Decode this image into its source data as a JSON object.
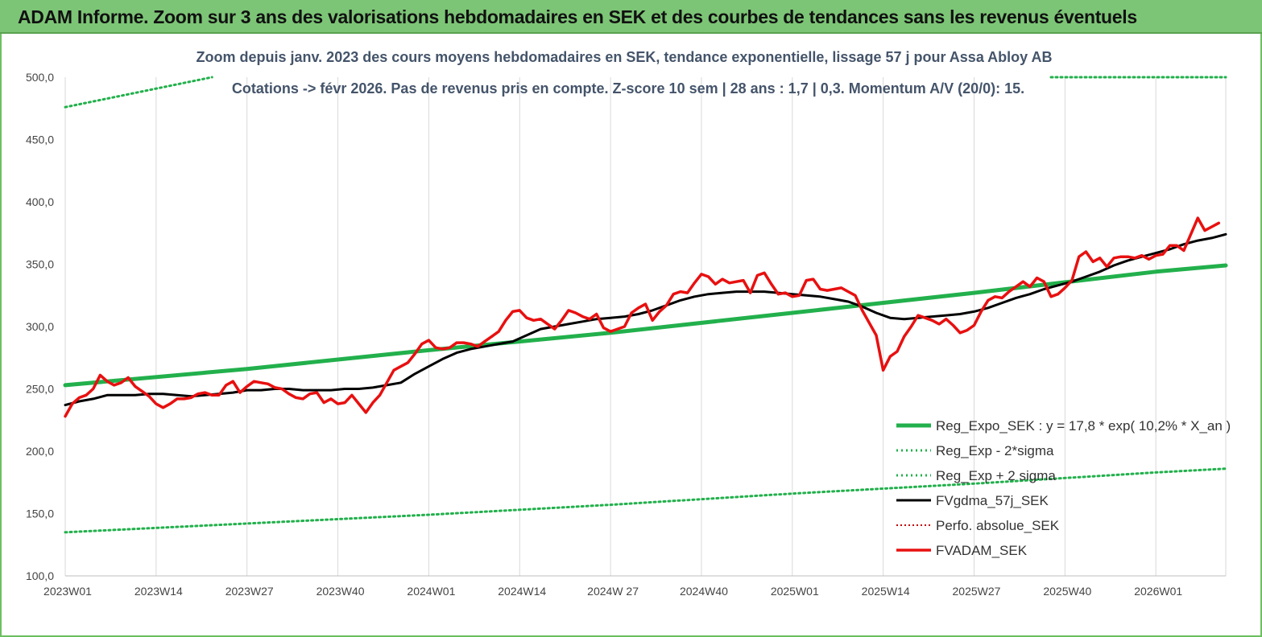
{
  "banner": {
    "title": "ADAM Informe. Zoom sur 3 ans des valorisations hebdomadaires en SEK et des courbes de tendances sans les revenus éventuels"
  },
  "colors": {
    "banner_bg": "#7cc576",
    "reg_expo": "#22b04c",
    "fvgdma": "#000000",
    "perfo_absolue": "#c00000",
    "fvadam": "#e81010",
    "title_text": "#44546a"
  },
  "chart_data": {
    "type": "line",
    "title": "Zoom depuis janv. 2023 des cours moyens hebdomadaires en SEK, tendance exponentielle, lissage 57 j pour Assa Abloy AB",
    "subtitle": "Cotations -> févr 2026.  Pas de revenus pris en compte. Z-score 10 sem  |  28 ans : 1,7  |  0,3. Momentum A/V (20/0): 15.",
    "xlabel": "",
    "ylabel": "",
    "ylim": [
      100,
      500
    ],
    "ytick_labels": [
      "100,0",
      "150,0",
      "200,0",
      "250,0",
      "300,0",
      "350,0",
      "400,0",
      "450,0",
      "500,0"
    ],
    "x_tick_labels": [
      "2023W01",
      "2023W14",
      "2023W27",
      "2023W40",
      "2024W01",
      "2024W14",
      "2024W 27",
      "2024W40",
      "2025W01",
      "2025W14",
      "2025W27",
      "2025W40",
      "2026W01"
    ],
    "x_tick_weeks": [
      0,
      13,
      26,
      39,
      52,
      65,
      78,
      91,
      104,
      117,
      130,
      143,
      156
    ],
    "x_last_week": 166,
    "grid": "vertical",
    "legend_position": "bottom-right",
    "legend": [
      "Reg_Expo_SEK : y = 17,8 * exp( 10,2% *  X_an )",
      "Reg_Exp - 2*sigma",
      "Reg_Exp + 2 sigma",
      "FVgdma_57j_SEK",
      "Perfo. absolue_SEK",
      "FVADAM_SEK"
    ],
    "series": [
      {
        "name": "Reg_Expo_SEK : y = 17,8 * exp( 10,2% *  X_an )",
        "style": "solid-thick",
        "points": [
          [
            0,
            253
          ],
          [
            26,
            266
          ],
          [
            52,
            281
          ],
          [
            78,
            295
          ],
          [
            104,
            311
          ],
          [
            130,
            327
          ],
          [
            156,
            344
          ],
          [
            166,
            349
          ]
        ]
      },
      {
        "name": "Reg_Exp - 2*sigma",
        "style": "dotted",
        "points": [
          [
            0,
            135
          ],
          [
            26,
            142
          ],
          [
            52,
            149
          ],
          [
            78,
            157
          ],
          [
            104,
            166
          ],
          [
            130,
            174
          ],
          [
            156,
            183
          ],
          [
            166,
            186
          ]
        ]
      },
      {
        "name": "Reg_Exp + 2 sigma",
        "style": "dotted",
        "points": [
          [
            0,
            476
          ],
          [
            21,
            500
          ]
        ],
        "points_extra": [
          [
            141,
            500
          ],
          [
            166,
            500
          ]
        ]
      },
      {
        "name": "FVgdma_57j_SEK",
        "style": "solid",
        "points": [
          [
            0,
            237
          ],
          [
            2,
            240
          ],
          [
            4,
            242
          ],
          [
            6,
            245
          ],
          [
            8,
            245
          ],
          [
            10,
            245
          ],
          [
            12,
            246
          ],
          [
            14,
            246
          ],
          [
            16,
            245
          ],
          [
            18,
            244
          ],
          [
            20,
            245
          ],
          [
            22,
            246
          ],
          [
            24,
            247
          ],
          [
            26,
            249
          ],
          [
            28,
            249
          ],
          [
            30,
            250
          ],
          [
            32,
            250
          ],
          [
            34,
            249
          ],
          [
            36,
            249
          ],
          [
            38,
            249
          ],
          [
            40,
            250
          ],
          [
            42,
            250
          ],
          [
            44,
            251
          ],
          [
            46,
            253
          ],
          [
            48,
            255
          ],
          [
            50,
            262
          ],
          [
            52,
            268
          ],
          [
            54,
            274
          ],
          [
            56,
            279
          ],
          [
            58,
            282
          ],
          [
            60,
            284
          ],
          [
            62,
            286
          ],
          [
            64,
            288
          ],
          [
            66,
            293
          ],
          [
            68,
            298
          ],
          [
            70,
            300
          ],
          [
            72,
            302
          ],
          [
            74,
            304
          ],
          [
            76,
            306
          ],
          [
            78,
            307
          ],
          [
            80,
            308
          ],
          [
            82,
            310
          ],
          [
            84,
            313
          ],
          [
            86,
            317
          ],
          [
            88,
            321
          ],
          [
            90,
            324
          ],
          [
            92,
            326
          ],
          [
            94,
            327
          ],
          [
            96,
            328
          ],
          [
            98,
            328
          ],
          [
            100,
            328
          ],
          [
            102,
            327
          ],
          [
            104,
            326
          ],
          [
            106,
            325
          ],
          [
            108,
            324
          ],
          [
            110,
            322
          ],
          [
            112,
            320
          ],
          [
            114,
            316
          ],
          [
            116,
            311
          ],
          [
            118,
            307
          ],
          [
            120,
            306
          ],
          [
            122,
            307
          ],
          [
            124,
            308
          ],
          [
            126,
            309
          ],
          [
            128,
            310
          ],
          [
            130,
            312
          ],
          [
            132,
            315
          ],
          [
            134,
            319
          ],
          [
            136,
            323
          ],
          [
            138,
            326
          ],
          [
            140,
            330
          ],
          [
            142,
            333
          ],
          [
            144,
            336
          ],
          [
            146,
            340
          ],
          [
            148,
            344
          ],
          [
            150,
            349
          ],
          [
            152,
            353
          ],
          [
            154,
            356
          ],
          [
            156,
            359
          ],
          [
            158,
            362
          ],
          [
            160,
            366
          ],
          [
            162,
            369
          ],
          [
            164,
            371
          ],
          [
            166,
            374
          ]
        ]
      },
      {
        "name": "FVADAM_SEK",
        "style": "solid-thick",
        "points": [
          [
            0,
            228
          ],
          [
            1,
            238
          ],
          [
            2,
            243
          ],
          [
            3,
            245
          ],
          [
            4,
            250
          ],
          [
            5,
            261
          ],
          [
            6,
            256
          ],
          [
            7,
            253
          ],
          [
            8,
            255
          ],
          [
            9,
            259
          ],
          [
            10,
            252
          ],
          [
            11,
            248
          ],
          [
            12,
            244
          ],
          [
            13,
            238
          ],
          [
            14,
            235
          ],
          [
            15,
            238
          ],
          [
            16,
            242
          ],
          [
            17,
            242
          ],
          [
            18,
            243
          ],
          [
            19,
            246
          ],
          [
            20,
            247
          ],
          [
            21,
            245
          ],
          [
            22,
            245
          ],
          [
            23,
            253
          ],
          [
            24,
            256
          ],
          [
            25,
            247
          ],
          [
            26,
            252
          ],
          [
            27,
            256
          ],
          [
            28,
            255
          ],
          [
            29,
            254
          ],
          [
            30,
            251
          ],
          [
            31,
            250
          ],
          [
            32,
            246
          ],
          [
            33,
            243
          ],
          [
            34,
            242
          ],
          [
            35,
            246
          ],
          [
            36,
            247
          ],
          [
            37,
            239
          ],
          [
            38,
            242
          ],
          [
            39,
            238
          ],
          [
            40,
            239
          ],
          [
            41,
            245
          ],
          [
            42,
            238
          ],
          [
            43,
            231
          ],
          [
            44,
            239
          ],
          [
            45,
            245
          ],
          [
            46,
            255
          ],
          [
            47,
            265
          ],
          [
            48,
            268
          ],
          [
            49,
            271
          ],
          [
            50,
            278
          ],
          [
            51,
            286
          ],
          [
            52,
            289
          ],
          [
            53,
            283
          ],
          [
            54,
            282
          ],
          [
            55,
            283
          ],
          [
            56,
            287
          ],
          [
            57,
            287
          ],
          [
            58,
            286
          ],
          [
            59,
            284
          ],
          [
            60,
            288
          ],
          [
            61,
            292
          ],
          [
            62,
            296
          ],
          [
            63,
            305
          ],
          [
            64,
            312
          ],
          [
            65,
            313
          ],
          [
            66,
            307
          ],
          [
            67,
            305
          ],
          [
            68,
            306
          ],
          [
            69,
            302
          ],
          [
            70,
            298
          ],
          [
            71,
            305
          ],
          [
            72,
            313
          ],
          [
            73,
            311
          ],
          [
            74,
            308
          ],
          [
            75,
            306
          ],
          [
            76,
            310
          ],
          [
            77,
            299
          ],
          [
            78,
            296
          ],
          [
            79,
            298
          ],
          [
            80,
            300
          ],
          [
            81,
            311
          ],
          [
            82,
            315
          ],
          [
            83,
            318
          ],
          [
            84,
            305
          ],
          [
            85,
            312
          ],
          [
            86,
            317
          ],
          [
            87,
            326
          ],
          [
            88,
            328
          ],
          [
            89,
            327
          ],
          [
            90,
            335
          ],
          [
            91,
            342
          ],
          [
            92,
            340
          ],
          [
            93,
            334
          ],
          [
            94,
            338
          ],
          [
            95,
            335
          ],
          [
            96,
            336
          ],
          [
            97,
            337
          ],
          [
            98,
            327
          ],
          [
            99,
            341
          ],
          [
            100,
            343
          ],
          [
            101,
            334
          ],
          [
            102,
            326
          ],
          [
            103,
            327
          ],
          [
            104,
            324
          ],
          [
            105,
            325
          ],
          [
            106,
            337
          ],
          [
            107,
            338
          ],
          [
            108,
            330
          ],
          [
            109,
            329
          ],
          [
            110,
            330
          ],
          [
            111,
            331
          ],
          [
            112,
            328
          ],
          [
            113,
            325
          ],
          [
            114,
            313
          ],
          [
            115,
            303
          ],
          [
            116,
            293
          ],
          [
            117,
            265
          ],
          [
            118,
            276
          ],
          [
            119,
            280
          ],
          [
            120,
            292
          ],
          [
            121,
            300
          ],
          [
            122,
            309
          ],
          [
            123,
            307
          ],
          [
            124,
            305
          ],
          [
            125,
            302
          ],
          [
            126,
            306
          ],
          [
            127,
            301
          ],
          [
            128,
            295
          ],
          [
            129,
            297
          ],
          [
            130,
            301
          ],
          [
            131,
            312
          ],
          [
            132,
            321
          ],
          [
            133,
            324
          ],
          [
            134,
            323
          ],
          [
            135,
            328
          ],
          [
            136,
            332
          ],
          [
            137,
            336
          ],
          [
            138,
            332
          ],
          [
            139,
            339
          ],
          [
            140,
            336
          ],
          [
            141,
            324
          ],
          [
            142,
            326
          ],
          [
            143,
            331
          ],
          [
            144,
            337
          ],
          [
            145,
            356
          ],
          [
            146,
            360
          ],
          [
            147,
            352
          ],
          [
            148,
            355
          ],
          [
            149,
            348
          ],
          [
            150,
            355
          ],
          [
            151,
            356
          ],
          [
            152,
            356
          ],
          [
            153,
            355
          ],
          [
            154,
            357
          ],
          [
            155,
            354
          ],
          [
            156,
            357
          ],
          [
            157,
            358
          ],
          [
            158,
            365
          ],
          [
            159,
            365
          ],
          [
            160,
            361
          ],
          [
            161,
            374
          ],
          [
            162,
            387
          ],
          [
            163,
            377
          ],
          [
            164,
            380
          ],
          [
            165,
            383
          ]
        ]
      }
    ]
  }
}
